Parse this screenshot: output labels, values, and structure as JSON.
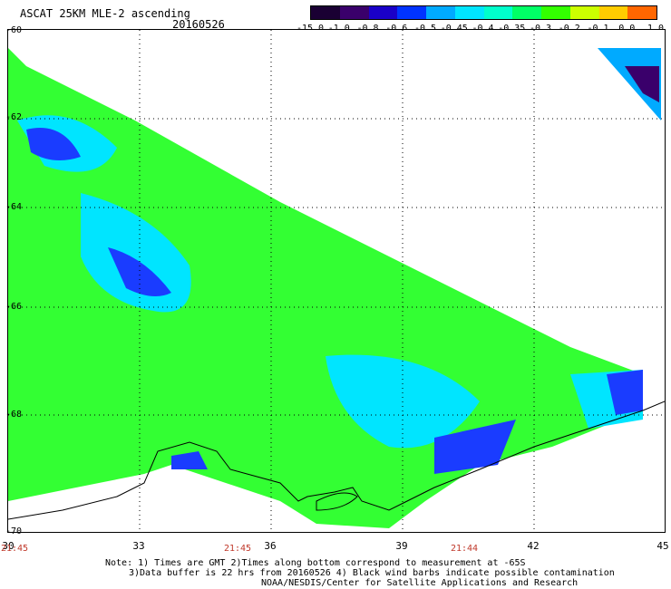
{
  "header": {
    "title": "ASCAT 25KM MLE-2 ascending",
    "date": "20160526"
  },
  "colorbar": {
    "labels": [
      "-15.0",
      "-1.0",
      "-0.8",
      "-0.6",
      "-0.5",
      "-0.45",
      "-0.4",
      "-0.35",
      "-0.3",
      "-0.2",
      "-0.1",
      "0.0",
      "1.0"
    ],
    "colors": [
      "#1a0033",
      "#3a006b",
      "#1a00c8",
      "#0033ff",
      "#00aaff",
      "#00e5ff",
      "#00ffcc",
      "#00ff66",
      "#33ff00",
      "#ccff00",
      "#ffcc00",
      "#ff6600",
      "#ff0000"
    ]
  },
  "axes": {
    "lat_labels": [
      "-60",
      "-62",
      "-64",
      "-66",
      "-68",
      "-70"
    ],
    "lon_labels": [
      "30",
      "33",
      "36",
      "39",
      "42",
      "45"
    ],
    "time_labels": [
      "21:45",
      "21:45",
      "21:44"
    ]
  },
  "notes": {
    "line1": "Note: 1) Times are GMT 2)Times along bottom correspond to measurement at -65S",
    "line2": "3)Data buffer is 22 hrs from 20160526 4) Black wind barbs indicate possible contamination",
    "line3": "NOAA/NESDIS/Center for Satellite Applications and Research"
  }
}
